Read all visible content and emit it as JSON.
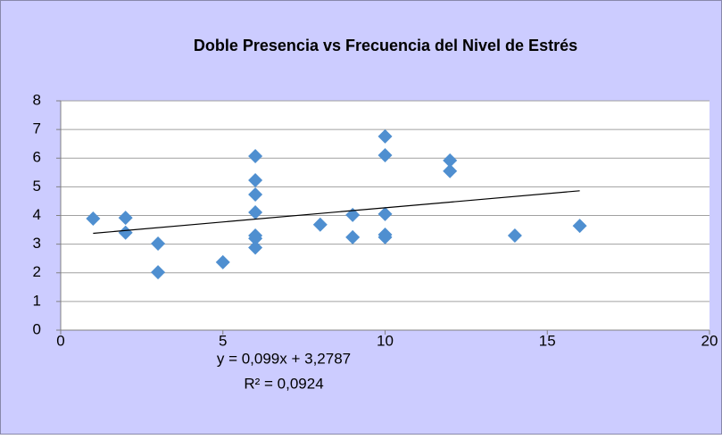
{
  "chart_data": {
    "type": "scatter",
    "title": "Doble Presencia vs Frecuencia del Nivel  de Estrés",
    "x": [
      1,
      2,
      2,
      3,
      3,
      5,
      6,
      6,
      6,
      6,
      6,
      6,
      6,
      8,
      9,
      9,
      10,
      10,
      10,
      10,
      10,
      12,
      12,
      14,
      16
    ],
    "values": [
      3.89,
      3.92,
      3.4,
      3.02,
      2.02,
      2.37,
      6.07,
      5.23,
      4.73,
      4.11,
      3.3,
      3.2,
      2.88,
      3.68,
      4.02,
      3.24,
      6.76,
      6.1,
      4.05,
      3.33,
      3.24,
      5.92,
      5.55,
      3.3,
      3.64
    ],
    "color": "#4f8fd0",
    "xlim": [
      0,
      20
    ],
    "xticks": [
      0,
      5,
      10,
      15,
      20
    ],
    "ylim": [
      0,
      8
    ],
    "yticks": [
      0,
      1,
      2,
      3,
      4,
      5,
      6,
      7,
      8
    ],
    "grid": true,
    "trendline": {
      "slope": 0.099,
      "intercept": 3.2787,
      "label": "y = 0,099x + 3,2787",
      "r2_label": "R² = 0,0924"
    }
  }
}
